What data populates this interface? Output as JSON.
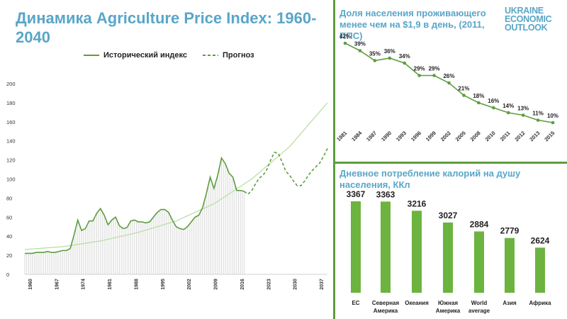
{
  "main_title": "Динамика Agriculture Price Index: 1960-2040",
  "logo": {
    "line1": "UKRAINE",
    "line2": "ECONOMIC",
    "line3": "OUTLOOK"
  },
  "colors": {
    "accent": "#59a6c8",
    "line": "#5e9d3e",
    "bar": "#6db33f",
    "trend": "#b9dca0",
    "area": "#d9d9d9"
  },
  "chart_data": [
    {
      "type": "line",
      "title": "Динамика Agriculture Price Index: 1960-2040",
      "legend": [
        "Исторический индекс",
        "Прогноз"
      ],
      "ylim": [
        0,
        200
      ],
      "yticks": [
        0,
        20,
        40,
        60,
        80,
        100,
        120,
        140,
        160,
        180,
        200
      ],
      "xlim": [
        1960,
        2040
      ],
      "xticks": [
        "1960",
        "1967",
        "1974",
        "1981",
        "1988",
        "1995",
        "2002",
        "2009",
        "2016",
        "2023",
        "2030",
        "2037"
      ],
      "series": [
        {
          "name": "Исторический индекс",
          "style": "solid",
          "x": [
            1960,
            1961,
            1962,
            1963,
            1964,
            1965,
            1966,
            1967,
            1968,
            1969,
            1970,
            1971,
            1972,
            1973,
            1974,
            1975,
            1976,
            1977,
            1978,
            1979,
            1980,
            1981,
            1982,
            1983,
            1984,
            1985,
            1986,
            1987,
            1988,
            1989,
            1990,
            1991,
            1992,
            1993,
            1994,
            1995,
            1996,
            1997,
            1998,
            1999,
            2000,
            2001,
            2002,
            2003,
            2004,
            2005,
            2006,
            2007,
            2008,
            2009,
            2010,
            2011,
            2012,
            2013,
            2014,
            2015,
            2016,
            2017,
            2018
          ],
          "y": [
            22,
            22,
            22,
            23,
            23,
            23,
            24,
            23,
            23,
            24,
            25,
            25,
            27,
            41,
            57,
            46,
            48,
            56,
            56,
            64,
            69,
            62,
            52,
            57,
            60,
            51,
            48,
            49,
            56,
            57,
            55,
            55,
            54,
            55,
            60,
            65,
            68,
            68,
            65,
            57,
            50,
            48,
            47,
            50,
            55,
            60,
            62,
            70,
            85,
            102,
            90,
            104,
            122,
            116,
            106,
            102,
            88,
            88,
            87
          ],
          "area": true
        },
        {
          "name": "Прогноз",
          "style": "dashed",
          "x": [
            2018,
            2019,
            2020,
            2021,
            2022,
            2023,
            2024,
            2025,
            2026,
            2027,
            2028,
            2029,
            2030,
            2031,
            2032,
            2033,
            2034,
            2035,
            2036,
            2037,
            2038,
            2039,
            2040
          ],
          "y": [
            87,
            84,
            88,
            95,
            101,
            104,
            110,
            120,
            128,
            127,
            118,
            108,
            104,
            98,
            93,
            93,
            98,
            104,
            109,
            113,
            117,
            124,
            132
          ]
        },
        {
          "name": "trend",
          "style": "trend",
          "x": [
            1960,
            1970,
            1980,
            1990,
            2000,
            2010,
            2020,
            2030,
            2040
          ],
          "y": [
            26,
            29,
            35,
            44,
            56,
            74,
            100,
            134,
            180
          ]
        }
      ]
    },
    {
      "type": "line",
      "title": "Доля населения проживающего менее чем на $1,9 в день, (2011, ППС)",
      "categories": [
        "1981",
        "1984",
        "1987",
        "1990",
        "1993",
        "1996",
        "1999",
        "2002",
        "2005",
        "2008",
        "2010",
        "2011",
        "2012",
        "2013",
        "2015"
      ],
      "values": [
        42,
        39,
        35,
        36,
        34,
        29,
        29,
        26,
        21,
        18,
        16,
        14,
        13,
        11,
        10
      ],
      "labels": [
        "42%",
        "39%",
        "35%",
        "36%",
        "34%",
        "29%",
        "29%",
        "26%",
        "21%",
        "18%",
        "16%",
        "14%",
        "13%",
        "11%",
        "10%"
      ],
      "ylim": [
        0,
        50
      ]
    },
    {
      "type": "bar",
      "title": "Дневное потребление калорий на душу населения, ККл",
      "categories": [
        [
          "ЕС"
        ],
        [
          "Северная",
          "Америка"
        ],
        [
          "Океания"
        ],
        [
          "Южная",
          "Америка"
        ],
        [
          "World",
          "average"
        ],
        [
          "Азия"
        ],
        [
          "Африка"
        ]
      ],
      "values": [
        3367,
        3363,
        3216,
        3027,
        2884,
        2779,
        2624
      ],
      "labels": [
        "3367",
        "3363",
        "3216",
        "3027",
        "2884",
        "2779",
        "2624"
      ],
      "ylim": [
        1900,
        3500
      ]
    }
  ]
}
